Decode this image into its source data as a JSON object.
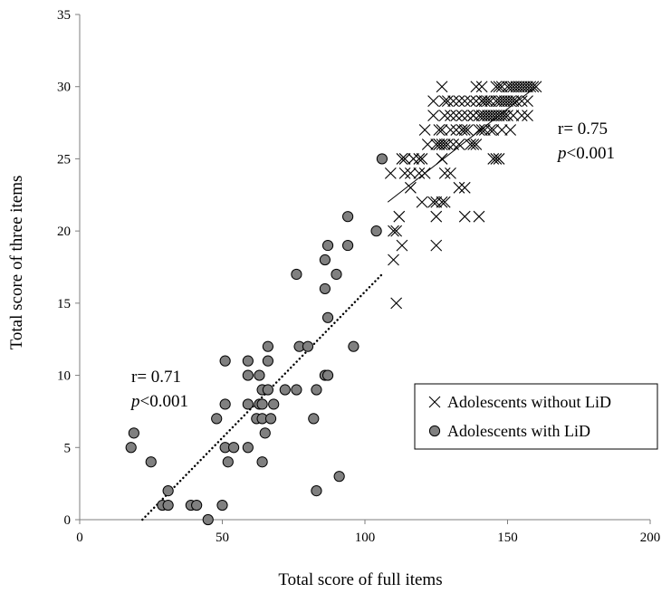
{
  "chart_data": {
    "type": "scatter",
    "xlabel": "Total score of full items",
    "ylabel": "Total score of three items",
    "xlim": [
      0,
      200
    ],
    "ylim": [
      0,
      35
    ],
    "xticks": [
      "0",
      "50",
      "100",
      "150",
      "200"
    ],
    "yticks": [
      "0",
      "5",
      "10",
      "15",
      "20",
      "25",
      "30",
      "35"
    ],
    "grid": false,
    "legend_position": "bottom-right",
    "series": [
      {
        "name": "Adolescents without LiD",
        "marker": "x",
        "trendline": {
          "style": "solid",
          "x": [
            108,
            160
          ],
          "y": [
            22,
            30
          ]
        },
        "annotation": {
          "r": "r= 0.75",
          "p_italic": "p",
          "p_rest": "<0.001"
        },
        "points": [
          [
            111,
            15
          ],
          [
            125,
            19
          ],
          [
            110,
            18
          ],
          [
            113,
            19
          ],
          [
            110,
            20
          ],
          [
            111,
            20
          ],
          [
            112,
            21
          ],
          [
            120,
            22
          ],
          [
            124,
            22
          ],
          [
            125,
            22
          ],
          [
            127,
            22
          ],
          [
            128,
            22
          ],
          [
            135,
            21
          ],
          [
            140,
            21
          ],
          [
            125,
            21
          ],
          [
            116,
            23
          ],
          [
            133,
            23
          ],
          [
            135,
            23
          ],
          [
            114,
            24
          ],
          [
            116,
            24
          ],
          [
            119,
            24
          ],
          [
            121,
            24
          ],
          [
            128,
            24
          ],
          [
            130,
            24
          ],
          [
            109,
            24
          ],
          [
            145,
            25
          ],
          [
            146,
            25
          ],
          [
            147,
            25
          ],
          [
            113,
            25
          ],
          [
            117,
            25
          ],
          [
            119,
            25
          ],
          [
            120,
            25
          ],
          [
            127,
            25
          ],
          [
            114,
            25
          ],
          [
            122,
            26
          ],
          [
            125,
            26
          ],
          [
            126,
            26
          ],
          [
            127,
            26
          ],
          [
            128,
            26
          ],
          [
            129,
            26
          ],
          [
            131,
            26
          ],
          [
            133,
            26
          ],
          [
            137,
            26
          ],
          [
            138,
            26
          ],
          [
            139,
            26
          ],
          [
            126,
            26
          ],
          [
            126,
            27
          ],
          [
            127,
            27
          ],
          [
            130,
            27
          ],
          [
            132,
            27
          ],
          [
            134,
            27
          ],
          [
            135,
            27
          ],
          [
            136,
            27
          ],
          [
            140,
            27
          ],
          [
            141,
            27
          ],
          [
            142,
            27
          ],
          [
            144,
            27
          ],
          [
            145,
            27
          ],
          [
            148,
            27
          ],
          [
            121,
            27
          ],
          [
            151,
            27
          ],
          [
            124,
            28
          ],
          [
            128,
            28
          ],
          [
            130,
            28
          ],
          [
            132,
            28
          ],
          [
            134,
            28
          ],
          [
            136,
            28
          ],
          [
            138,
            28
          ],
          [
            140,
            28
          ],
          [
            141,
            28
          ],
          [
            142,
            28
          ],
          [
            143,
            28
          ],
          [
            144,
            28
          ],
          [
            145,
            28
          ],
          [
            146,
            28
          ],
          [
            147,
            28
          ],
          [
            148,
            28
          ],
          [
            149,
            28
          ],
          [
            150,
            28
          ],
          [
            152,
            28
          ],
          [
            155,
            28
          ],
          [
            157,
            28
          ],
          [
            138,
            28
          ],
          [
            124,
            29
          ],
          [
            128,
            29
          ],
          [
            129,
            29
          ],
          [
            131,
            29
          ],
          [
            133,
            29
          ],
          [
            135,
            29
          ],
          [
            137,
            29
          ],
          [
            139,
            29
          ],
          [
            141,
            29
          ],
          [
            142,
            29
          ],
          [
            143,
            29
          ],
          [
            144,
            29
          ],
          [
            146,
            29
          ],
          [
            147,
            29
          ],
          [
            148,
            29
          ],
          [
            149,
            29
          ],
          [
            150,
            29
          ],
          [
            151,
            29
          ],
          [
            152,
            29
          ],
          [
            153,
            29
          ],
          [
            155,
            29
          ],
          [
            157,
            29
          ],
          [
            141,
            29
          ],
          [
            127,
            30
          ],
          [
            139,
            30
          ],
          [
            141,
            30
          ],
          [
            146,
            30
          ],
          [
            148,
            30
          ],
          [
            150,
            30
          ],
          [
            151,
            30
          ],
          [
            152,
            30
          ],
          [
            153,
            30
          ],
          [
            154,
            30
          ],
          [
            155,
            30
          ],
          [
            156,
            30
          ],
          [
            157,
            30
          ],
          [
            158,
            30
          ],
          [
            159,
            30
          ],
          [
            160,
            30
          ],
          [
            147,
            30
          ]
        ]
      },
      {
        "name": "Adolescents with LiD",
        "marker": "circle",
        "trendline": {
          "style": "dotted",
          "x": [
            22,
            106
          ],
          "y": [
            0,
            17
          ]
        },
        "annotation": {
          "r": "r= 0.71",
          "p_italic": "p",
          "p_rest": "<0.001"
        },
        "points": [
          [
            45,
            0
          ],
          [
            29,
            1
          ],
          [
            31,
            1
          ],
          [
            39,
            1
          ],
          [
            41,
            1
          ],
          [
            50,
            1
          ],
          [
            31,
            2
          ],
          [
            83,
            2
          ],
          [
            91,
            3
          ],
          [
            25,
            4
          ],
          [
            52,
            4
          ],
          [
            64,
            4
          ],
          [
            18,
            5
          ],
          [
            51,
            5
          ],
          [
            54,
            5
          ],
          [
            59,
            5
          ],
          [
            19,
            6
          ],
          [
            65,
            6
          ],
          [
            48,
            7
          ],
          [
            62,
            7
          ],
          [
            64,
            7
          ],
          [
            67,
            7
          ],
          [
            82,
            7
          ],
          [
            51,
            8
          ],
          [
            59,
            8
          ],
          [
            63,
            8
          ],
          [
            64,
            8
          ],
          [
            68,
            8
          ],
          [
            64,
            9
          ],
          [
            66,
            9
          ],
          [
            72,
            9
          ],
          [
            76,
            9
          ],
          [
            83,
            9
          ],
          [
            59,
            10
          ],
          [
            63,
            10
          ],
          [
            86,
            10
          ],
          [
            87,
            10
          ],
          [
            51,
            11
          ],
          [
            59,
            11
          ],
          [
            66,
            11
          ],
          [
            66,
            12
          ],
          [
            77,
            12
          ],
          [
            80,
            12
          ],
          [
            96,
            12
          ],
          [
            87,
            14
          ],
          [
            86,
            16
          ],
          [
            76,
            17
          ],
          [
            90,
            17
          ],
          [
            86,
            18
          ],
          [
            87,
            19
          ],
          [
            94,
            19
          ],
          [
            104,
            20
          ],
          [
            94,
            21
          ],
          [
            106,
            25
          ]
        ]
      }
    ]
  }
}
